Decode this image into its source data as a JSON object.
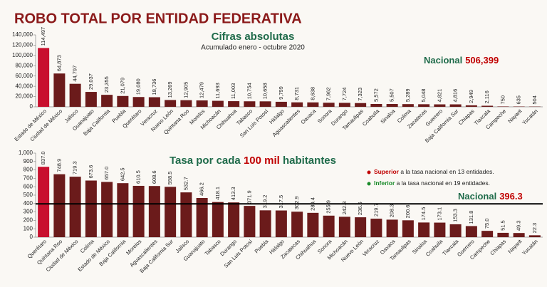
{
  "header": {
    "title": "ROBO TOTAL POR ENTIDAD FEDERATIVA"
  },
  "chart_data": [
    {
      "type": "bar",
      "title": "Cifras absolutas",
      "subtitle": "Acumulado enero - octubre 2020",
      "national_label": "Nacional",
      "national_value": "506,399",
      "categories": [
        "Estado de México",
        "Ciudad de México",
        "Jalisco",
        "Guanajuato",
        "Baja California",
        "Puebla",
        "Querétaro",
        "Veracruz",
        "Nuevo León",
        "Quintana Roo",
        "Morelos",
        "Michoacán",
        "Chihuahua",
        "Tabasco",
        "San Luis Potosí",
        "Hidalgo",
        "Aguascalientes",
        "Oaxaca",
        "Sonora",
        "Durango",
        "Tamaulipas",
        "Coahuila",
        "Sinaloa",
        "Colima",
        "Zacatecas",
        "Guerrero",
        "Baja California Sur",
        "Chiapas",
        "Tlaxcala",
        "Campeche",
        "Nayarit",
        "Yucatán"
      ],
      "values": [
        114497,
        64873,
        44797,
        29037,
        23355,
        21079,
        19080,
        18736,
        13269,
        12905,
        12479,
        11693,
        11003,
        10754,
        10658,
        9799,
        8731,
        8638,
        7962,
        7724,
        7323,
        5572,
        5507,
        5289,
        5048,
        4821,
        4816,
        2949,
        2116,
        750,
        635,
        504
      ],
      "value_labels": [
        "114,497",
        "64,873",
        "44,797",
        "29,037",
        "23,355",
        "21,079",
        "19,080",
        "18,736",
        "13,269",
        "12,905",
        "12,479",
        "11,693",
        "11,003",
        "10,754",
        "10,658",
        "9,799",
        "8,731",
        "8,638",
        "7,962",
        "7,724",
        "7,323",
        "5,572",
        "5,507",
        "5,289",
        "5,048",
        "4,821",
        "4,816",
        "2,949",
        "2,116",
        "750",
        "635",
        "504"
      ],
      "colors": [
        "#c8102e",
        "#6b1b1b",
        "#6b1b1b",
        "#6b1b1b",
        "#6b1b1b",
        "#6b1b1b",
        "#6b1b1b",
        "#6b1b1b",
        "#6b1b1b",
        "#6b1b1b",
        "#6b1b1b",
        "#6b1b1b",
        "#6b1b1b",
        "#6b1b1b",
        "#6b1b1b",
        "#6b1b1b",
        "#6b1b1b",
        "#6b1b1b",
        "#6b1b1b",
        "#6b1b1b",
        "#6b1b1b",
        "#6b1b1b",
        "#6b1b1b",
        "#6b1b1b",
        "#6b1b1b",
        "#6b1b1b",
        "#6b1b1b",
        "#6b1b1b",
        "#6b1b1b",
        "#6b1b1b",
        "#6b1b1b",
        "#6b1b1b"
      ],
      "ylim": [
        0,
        140000
      ],
      "yticks": [
        0,
        {
          "value": 20000,
          "label": "20,000"
        },
        {
          "value": 40000,
          "label": "40,000"
        },
        {
          "value": 60000,
          "label": "60,000"
        },
        {
          "value": 80000,
          "label": "80,000"
        },
        {
          "value": 100000,
          "label": "100,000"
        },
        {
          "value": 120000,
          "label": "120,000"
        },
        {
          "value": 140000,
          "label": "140,000"
        }
      ]
    },
    {
      "type": "bar",
      "title_parts": [
        "Tasa por cada ",
        "100 mil",
        " habitantes"
      ],
      "national": {
        "label": "Nacional",
        "value": 396.3
      },
      "notes": [
        {
          "word": "Superior",
          "text": " a la tasa nacional en 13 entidades.",
          "color": "#c00000"
        },
        {
          "word": "Inferior",
          "text": " a la tasa nacional en 19 entidades.",
          "color": "#1a8a2a"
        }
      ],
      "categories": [
        "Querétaro",
        "Quintana Roo",
        "Ciudad de México",
        "Colima",
        "Estado de México",
        "Baja California",
        "Morelos",
        "Aguascalientes",
        "Baja California Sur",
        "Jalisco",
        "Guanajuato",
        "Tabasco",
        "Durango",
        "San Luis Potosí",
        "Puebla",
        "Hidalgo",
        "Zacatecas",
        "Chihuahua",
        "Sonora",
        "Michoacán",
        "Nuevo León",
        "Veracruz",
        "Oaxaca",
        "Tamaulipas",
        "Sinaloa",
        "Coahuila",
        "Tlaxcala",
        "Guerrero",
        "Campeche",
        "Chiapas",
        "Nayarit",
        "Yucatán"
      ],
      "values": [
        837.0,
        748.9,
        719.3,
        673.6,
        657.0,
        642.5,
        610.5,
        608.6,
        598.5,
        532.7,
        466.2,
        418.1,
        413.3,
        371.9,
        319.2,
        317.5,
        302.9,
        289.4,
        255.9,
        242.3,
        236.5,
        219.7,
        208.3,
        200.6,
        174.5,
        173.1,
        153.3,
        131.8,
        75.0,
        51.5,
        49.3,
        22.3
      ],
      "value_labels": [
        "837.0",
        "748.9",
        "719.3",
        "673.6",
        "657.0",
        "642.5",
        "610.5",
        "608.6",
        "598.5",
        "532.7",
        "466.2",
        "418.1",
        "413.3",
        "371.9",
        "319.2",
        "317.5",
        "302.9",
        "289.4",
        "255.9",
        "242.3",
        "236.5",
        "219.7",
        "208.3",
        "200.6",
        "174.5",
        "173.1",
        "153.3",
        "131.8",
        "75.0",
        "51.5",
        "49.3",
        "22.3"
      ],
      "colors": [
        "#c8102e",
        "#6b1b1b",
        "#6b1b1b",
        "#6b1b1b",
        "#6b1b1b",
        "#6b1b1b",
        "#6b1b1b",
        "#6b1b1b",
        "#6b1b1b",
        "#6b1b1b",
        "#6b1b1b",
        "#6b1b1b",
        "#6b1b1b",
        "#6b1b1b",
        "#6b1b1b",
        "#6b1b1b",
        "#6b1b1b",
        "#6b1b1b",
        "#6b1b1b",
        "#6b1b1b",
        "#6b1b1b",
        "#6b1b1b",
        "#6b1b1b",
        "#6b1b1b",
        "#6b1b1b",
        "#6b1b1b",
        "#6b1b1b",
        "#6b1b1b",
        "#6b1b1b",
        "#6b1b1b",
        "#6b1b1b",
        "#6b1b1b"
      ],
      "ylim": [
        0,
        1000
      ],
      "yticks": [
        0,
        100,
        200,
        300,
        400,
        500,
        600,
        700,
        800,
        900,
        {
          "value": 1000,
          "label": "1,000"
        }
      ]
    }
  ]
}
